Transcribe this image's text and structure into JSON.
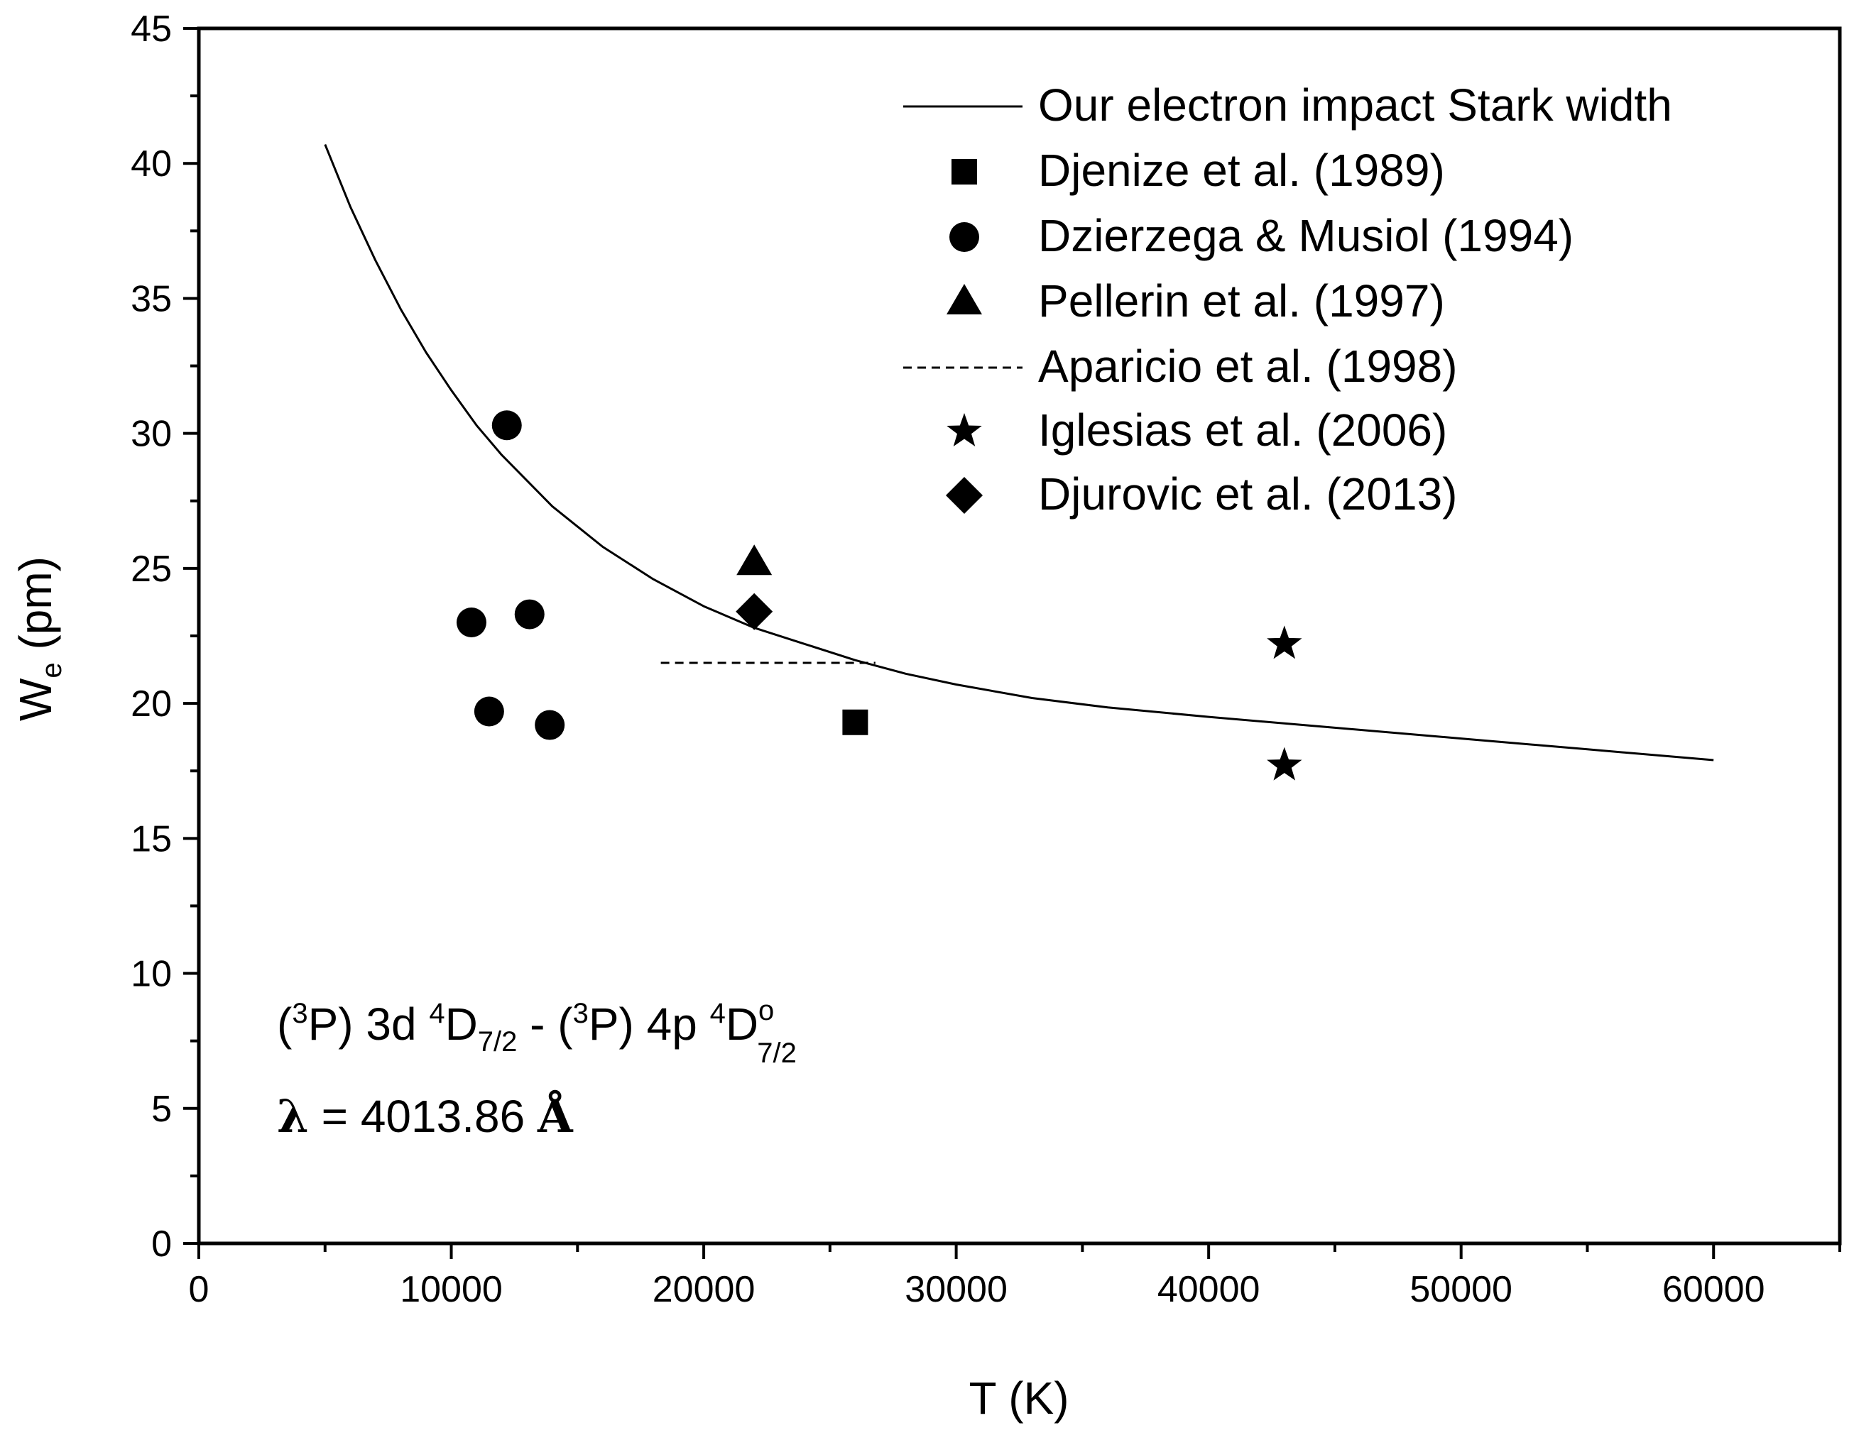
{
  "chart_data": {
    "type": "scatter",
    "xlabel": "T (K)",
    "ylabel_main": "W",
    "ylabel_sub": "e",
    "ylabel_unit": " (pm)",
    "xlim": [
      0,
      65000
    ],
    "ylim": [
      0,
      45
    ],
    "x_major_ticks": [
      0,
      10000,
      20000,
      30000,
      40000,
      50000,
      60000
    ],
    "x_tick_labels": [
      "0",
      "10000",
      "20000",
      "30000",
      "40000",
      "50000",
      "60000"
    ],
    "y_major_ticks": [
      0,
      5,
      10,
      15,
      20,
      25,
      30,
      35,
      40,
      45
    ],
    "y_tick_labels": [
      "0",
      "5",
      "10",
      "15",
      "20",
      "25",
      "30",
      "35",
      "40",
      "45"
    ],
    "x_minor_step": 5000,
    "y_minor_step": 2.5,
    "grid": false,
    "legend_position": "top-right",
    "series": [
      {
        "name": "Our electron impact Stark width",
        "marker": "line",
        "x": [
          5000,
          6000,
          7000,
          8000,
          9000,
          10000,
          11000,
          12000,
          14000,
          16000,
          18000,
          20000,
          22000,
          24000,
          26000,
          28000,
          30000,
          33000,
          36000,
          40000,
          45000,
          50000,
          55000,
          60000
        ],
        "y": [
          40.7,
          38.4,
          36.4,
          34.6,
          33.0,
          31.6,
          30.3,
          29.2,
          27.3,
          25.8,
          24.6,
          23.6,
          22.8,
          22.2,
          21.6,
          21.1,
          20.7,
          20.2,
          19.85,
          19.5,
          19.1,
          18.7,
          18.3,
          17.9
        ]
      },
      {
        "name": "Djenize et al. (1989)",
        "marker": "square",
        "x": [
          26000
        ],
        "y": [
          19.3
        ]
      },
      {
        "name": "Dzierzega & Musiol (1994)",
        "marker": "circle",
        "x": [
          12200,
          10800,
          13100,
          11500,
          13900
        ],
        "y": [
          30.3,
          23.0,
          23.3,
          19.7,
          19.2
        ]
      },
      {
        "name": "Pellerin et al. (1997)",
        "marker": "triangle",
        "x": [
          22000
        ],
        "y": [
          25.2
        ]
      },
      {
        "name": "Aparicio et al. (1998)",
        "marker": "dashed",
        "x": [
          18300,
          26800
        ],
        "y": [
          21.5,
          21.5
        ]
      },
      {
        "name": "Iglesias et al. (2006)",
        "marker": "star",
        "x": [
          43000,
          43000
        ],
        "y": [
          22.2,
          17.7
        ]
      },
      {
        "name": "Djurovic et al. (2013)",
        "marker": "diamond",
        "x": [
          22000
        ],
        "y": [
          23.4
        ]
      }
    ],
    "annotation": {
      "p1": "(",
      "p1_sup": "3",
      "p2": "P) 3d ",
      "p2_sup": "4",
      "p3": "D",
      "p3_sub": "7/2",
      "p4": " - (",
      "p4_sup": "3",
      "p5": "P) 4p ",
      "p5_sup": "4",
      "p6": "D",
      "p6_sup": "o",
      "p6_sub": "7/2",
      "lambda_symbol": "λ",
      "lambda_value": " = 4013.86 ",
      "angstrom": "Å"
    },
    "colors": {
      "line": "#000000",
      "marker": "#000000",
      "background": "#ffffff"
    }
  }
}
